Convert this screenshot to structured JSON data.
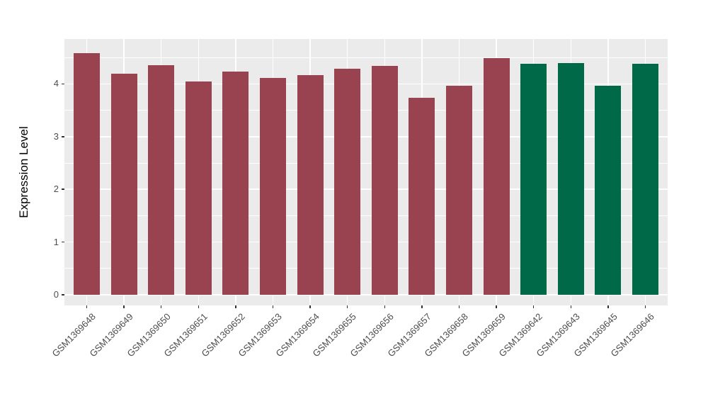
{
  "chart_data": {
    "type": "bar",
    "title": "",
    "xlabel": "",
    "ylabel": "Expression Level",
    "categories": [
      "GSM1369648",
      "GSM1369649",
      "GSM1369650",
      "GSM1369651",
      "GSM1369652",
      "GSM1369653",
      "GSM1369654",
      "GSM1369655",
      "GSM1369656",
      "GSM1369657",
      "GSM1369658",
      "GSM1369659",
      "GSM1369642",
      "GSM1369643",
      "GSM1369645",
      "GSM1369646"
    ],
    "values": [
      4.59,
      4.19,
      4.35,
      4.04,
      4.24,
      4.11,
      4.16,
      4.29,
      4.34,
      3.73,
      3.97,
      4.49,
      4.38,
      4.4,
      3.96,
      4.38
    ],
    "group_index": [
      0,
      0,
      0,
      0,
      0,
      0,
      0,
      0,
      0,
      0,
      0,
      0,
      1,
      1,
      1,
      1
    ],
    "group_colors": [
      "#9A4350",
      "#006A48"
    ],
    "yticks": [
      0,
      1,
      2,
      3,
      4
    ],
    "minor_yticks": [
      0.5,
      1.5,
      2.5,
      3.5,
      4.5
    ],
    "ylim": [
      -0.21,
      4.85
    ],
    "grid": "on",
    "legend": "none",
    "x_label_rotation_deg": 45,
    "panel_background": "#EBEBEB",
    "gridline_color": "#FFFFFF",
    "axis_text_color": "#4D4D4D"
  }
}
